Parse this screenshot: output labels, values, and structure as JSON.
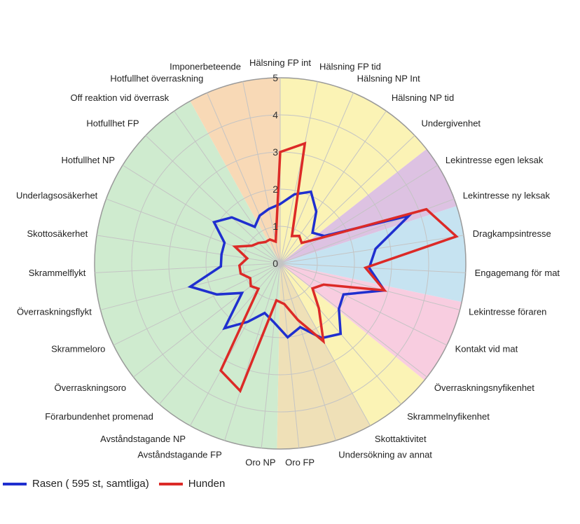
{
  "chart_data": {
    "type": "radar",
    "title": "",
    "rmax": 5,
    "ticks": [
      "0",
      "1",
      "2",
      "3",
      "4",
      "5"
    ],
    "categories": [
      "Hälsning FP int",
      "Hälsning FP tid",
      "Hälsning NP Int",
      "Hälsning NP tid",
      "Undergivenhet",
      "Lekintresse egen leksak",
      "Lekintresse ny leksak",
      "Dragkampsintresse",
      "Engagemang för mat",
      "Lekintresse föraren",
      "Kontakt vid mat",
      "Överraskningsnyfikenhet",
      "Skrammelnyfikenhet",
      "Skottaktivitet",
      "Undersökning av annat",
      "Oro FP",
      "Oro NP",
      "Avståndstagande FP",
      "Avståndstagande NP",
      "Förarbundenhet promenad",
      "Överraskningsoro",
      "Skrammeloro",
      "Överraskningsflykt",
      "Skrammelflykt",
      "Skottosäkerhet",
      "Underlagsosäkerhet",
      "Hotfullhet NP",
      "Hotfullhet FP",
      "Off reaktion vid överrask",
      "Hotfullhet överraskning",
      "Imponerbeteende"
    ],
    "sector_colors": [
      "#fbf3b5",
      "#ddc2e2",
      "#c6e3f1",
      "#f8cde0",
      "#fbf3b5",
      "#efe0b7",
      "#cfebcf",
      "#f8d9b6"
    ],
    "series": [
      {
        "name": "Rasen ( 595 st, samtliga)",
        "color": "#1f2fcf",
        "values": [
          1.6,
          1.9,
          2.1,
          1.7,
          1.2,
          1.4,
          3.7,
          2.6,
          2.4,
          2.9,
          1.9,
          2.0,
          2.5,
          2.3,
          1.8,
          2.0,
          1.6,
          1.4,
          1.8,
          2.3,
          1.3,
          1.9,
          2.5,
          1.6,
          1.6,
          1.6,
          2.1,
          1.8,
          1.2,
          1.4,
          1.5
        ]
      },
      {
        "name": "Hunden",
        "color": "#dc2a27",
        "values": [
          3.0,
          3.3,
          0.8,
          0.9,
          0.8,
          1.3,
          4.2,
          4.8,
          2.3,
          2.9,
          1.3,
          1.1,
          1.6,
          2.4,
          1.6,
          1.1,
          1.0,
          3.6,
          3.3,
          0.9,
          1.0,
          0.9,
          1.1,
          1.1,
          0.9,
          1.3,
          0.9,
          0.8,
          0.7,
          0.7,
          0.6
        ]
      }
    ],
    "legend": "bottom-left",
    "grid": true
  }
}
